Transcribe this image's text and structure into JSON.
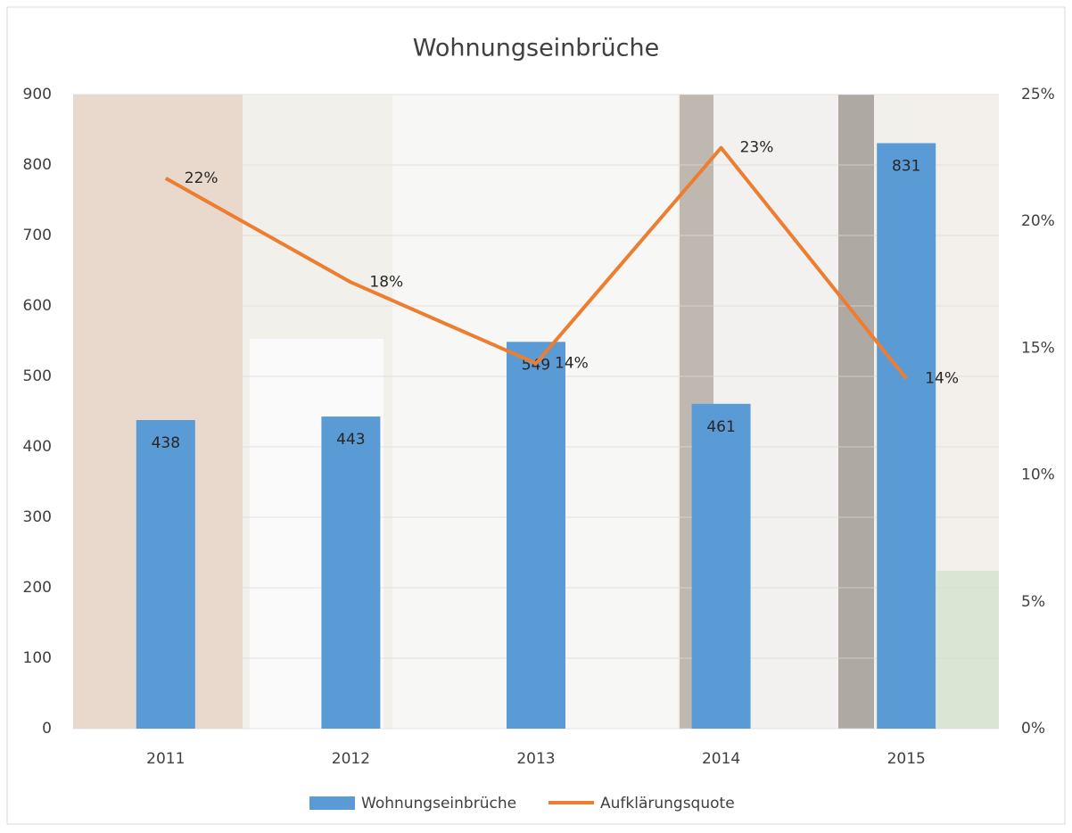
{
  "chart_data": {
    "type": "bar-line",
    "title": "Wohnungseinbrüche",
    "categories": [
      "2011",
      "2012",
      "2013",
      "2014",
      "2015"
    ],
    "series": [
      {
        "name": "Wohnungseinbrüche",
        "type": "bar",
        "color": "#5b9bd5",
        "values": [
          438,
          443,
          549,
          461,
          831
        ]
      },
      {
        "name": "Aufklärungsquote",
        "type": "line",
        "axis": "y2",
        "color": "#ed7d31",
        "values": [
          21.7,
          17.6,
          14.4,
          22.9,
          13.8
        ],
        "value_labels": [
          "22%",
          "18%",
          "14%",
          "23%",
          "14%"
        ]
      }
    ],
    "ylim": [
      0,
      900
    ],
    "yticks": [
      0,
      100,
      200,
      300,
      400,
      500,
      600,
      700,
      800,
      900
    ],
    "y2lim": [
      0,
      25
    ],
    "y2ticks": [
      {
        "value": 0,
        "label": "0%"
      },
      {
        "value": 5,
        "label": "5%"
      },
      {
        "value": 10,
        "label": "10%"
      },
      {
        "value": 15,
        "label": "15%"
      },
      {
        "value": 20,
        "label": "20%"
      },
      {
        "value": 25,
        "label": "25%"
      }
    ],
    "grid": true,
    "legend": "bottom"
  }
}
